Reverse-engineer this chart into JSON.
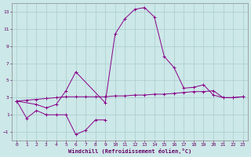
{
  "xlabel": "Windchill (Refroidissement éolien,°C)",
  "background_color": "#cce8e8",
  "grid_color": "#aacccc",
  "line_color": "#880088",
  "line1_x": [
    0,
    1,
    2,
    3,
    4,
    5,
    6,
    7,
    8,
    9
  ],
  "line1_y": [
    2.6,
    0.6,
    1.5,
    1.0,
    1.0,
    1.0,
    -1.3,
    -0.8,
    0.4,
    0.4
  ],
  "line2_x": [
    0,
    2,
    3,
    4,
    5,
    6,
    9,
    10,
    11,
    12,
    13,
    14,
    15,
    16,
    17,
    18,
    19,
    20,
    21,
    22,
    23
  ],
  "line2_y": [
    2.6,
    2.2,
    1.8,
    2.2,
    3.8,
    6.0,
    2.4,
    10.4,
    12.2,
    13.3,
    13.5,
    12.4,
    7.8,
    6.5,
    4.1,
    4.2,
    4.5,
    3.3,
    3.0,
    3.0,
    3.1
  ],
  "line3_x": [
    0,
    1,
    2,
    3,
    4,
    5,
    6,
    7,
    8,
    9,
    10,
    11,
    12,
    13,
    14,
    15,
    16,
    17,
    18,
    19,
    20,
    21,
    22,
    23
  ],
  "line3_y": [
    2.6,
    2.7,
    2.8,
    2.9,
    3.0,
    3.1,
    3.1,
    3.1,
    3.1,
    3.1,
    3.2,
    3.2,
    3.3,
    3.3,
    3.4,
    3.4,
    3.5,
    3.6,
    3.7,
    3.7,
    3.8,
    3.0,
    3.0,
    3.1
  ],
  "ylim": [
    -2.0,
    14.0
  ],
  "xlim": [
    0,
    23
  ],
  "yticks": [
    -1,
    1,
    3,
    5,
    7,
    9,
    11,
    13
  ],
  "xticks": [
    0,
    1,
    2,
    3,
    4,
    5,
    6,
    7,
    8,
    9,
    10,
    11,
    12,
    13,
    14,
    15,
    16,
    17,
    18,
    19,
    20,
    21,
    22,
    23
  ]
}
